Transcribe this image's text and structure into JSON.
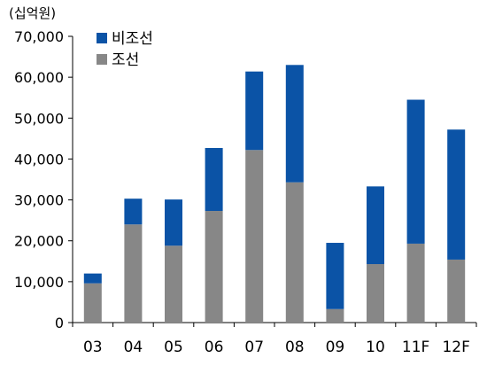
{
  "chart_data": {
    "type": "bar",
    "stacked": true,
    "unit_label": "(십억원)",
    "categories": [
      "03",
      "04",
      "05",
      "06",
      "07",
      "08",
      "09",
      "10",
      "11F",
      "12F"
    ],
    "series": [
      {
        "name": "조선",
        "color": "#878787",
        "values": [
          9600,
          24000,
          18800,
          27300,
          42200,
          34300,
          3300,
          14300,
          19300,
          15400
        ]
      },
      {
        "name": "비조선",
        "color": "#0b53a6",
        "values": [
          2400,
          6300,
          11300,
          15400,
          19200,
          28700,
          16200,
          19000,
          35200,
          31800
        ]
      }
    ],
    "ylim": [
      0,
      70000
    ],
    "yticks": [
      "0",
      "10,000",
      "20,000",
      "30,000",
      "40,000",
      "50,000",
      "60,000",
      "70,000"
    ],
    "legend": {
      "position": "top-left",
      "order": [
        "비조선",
        "조선"
      ]
    },
    "grid": false
  }
}
